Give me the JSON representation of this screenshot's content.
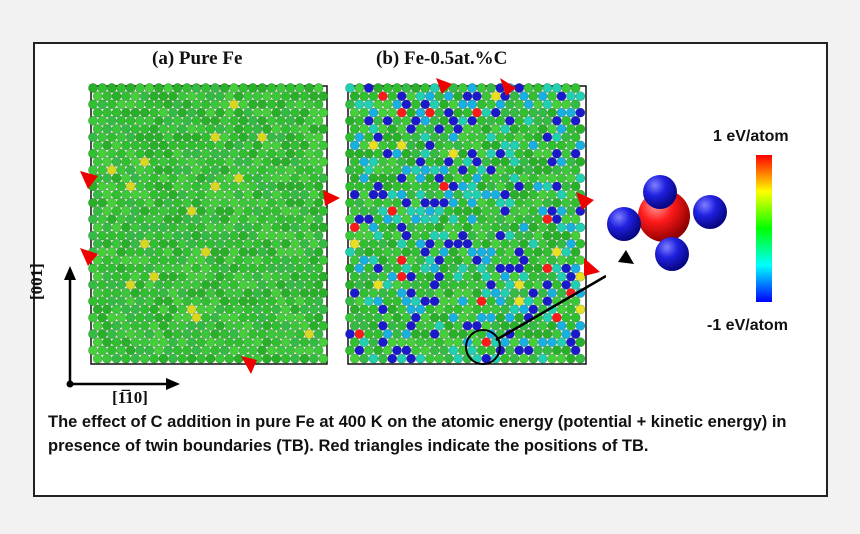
{
  "panels": [
    {
      "label": "(a) Pure Fe"
    },
    {
      "label": "(b) Fe-0.5at.%C"
    }
  ],
  "axes": {
    "vertical": "[001]",
    "horizontal": "[Ī10]",
    "horizontal_display": "[1̅10]"
  },
  "colorbar": {
    "max_label": "1 eV/atom",
    "min_label": "-1 eV/atom",
    "colors": [
      "#ff0000",
      "#ffff00",
      "#00ff00",
      "#00ffff",
      "#0000ff"
    ]
  },
  "caption": "The effect of C addition in pure Fe at 400 K on the atomic energy (potential + kinetic energy) in presence of twin boundaries (TB). Red triangles indicate the positions of TB.",
  "colors": {
    "atom_green": "#2fbf2f",
    "atom_red": "#ff1a1a",
    "atom_blue": "#1a1acc",
    "marker_red": "#ee0000",
    "frame": "#222222"
  }
}
